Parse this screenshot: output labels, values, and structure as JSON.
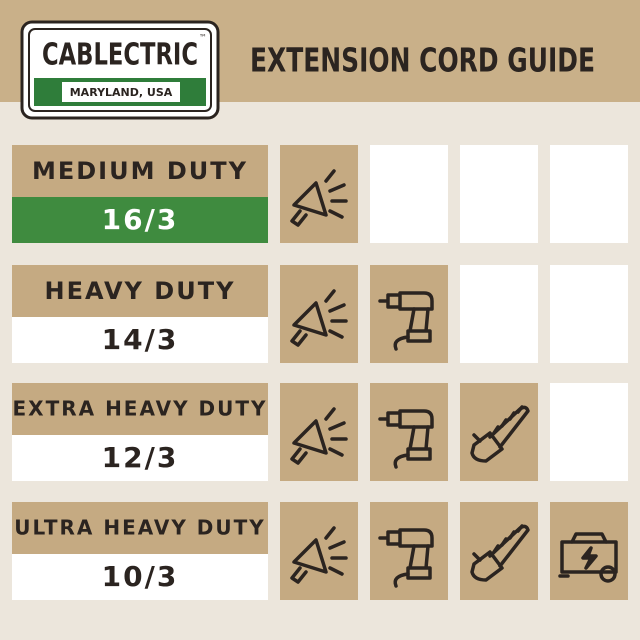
{
  "logo": {
    "name": "CABLECTRIC",
    "trademark": "™",
    "location": "MARYLAND, USA"
  },
  "title": "EXTENSION CORD GUIDE",
  "rows": [
    {
      "duty": "MEDIUM DUTY",
      "gauge": "16/3"
    },
    {
      "duty": "HEAVY DUTY",
      "gauge": "14/3"
    },
    {
      "duty": "EXTRA HEAVY DUTY",
      "gauge": "12/3"
    },
    {
      "duty": "ULTRA HEAVY DUTY",
      "gauge": "10/3"
    }
  ]
}
